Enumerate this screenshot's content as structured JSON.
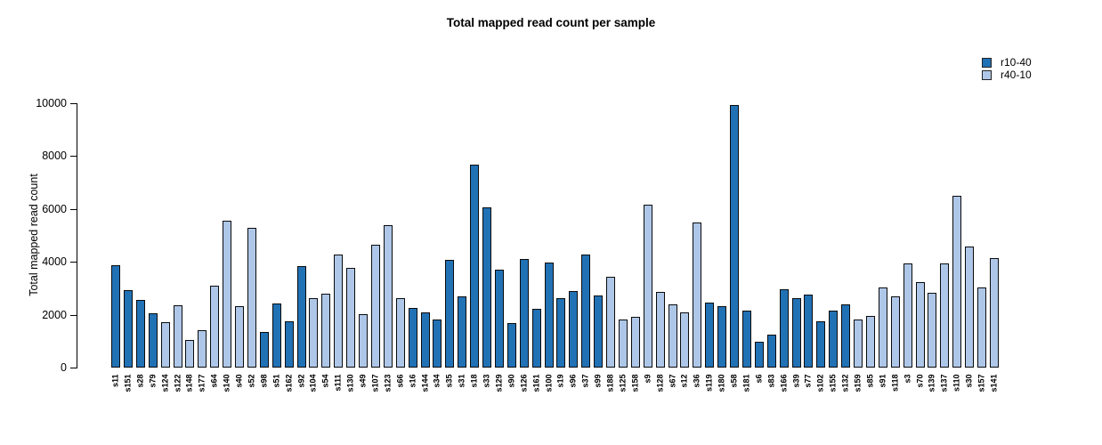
{
  "title": "Total mapped read count per sample",
  "legend": {
    "items": [
      {
        "label": "r10-40",
        "color": "#2171B5"
      },
      {
        "label": "r40-10",
        "color": "#AEC7E8"
      }
    ]
  },
  "chart_data": {
    "type": "bar",
    "title": "Total mapped read count per sample",
    "xlabel": "",
    "ylabel": "Total mapped read count",
    "ylim": [
      0,
      10000
    ],
    "yticks": [
      0,
      2000,
      4000,
      6000,
      8000,
      10000
    ],
    "grid": false,
    "legend_position": "top-right",
    "series_colors": {
      "r10-40": "#2171B5",
      "r40-10": "#AEC7E8"
    },
    "bars": {
      "columns": [
        "sample",
        "series",
        "value"
      ],
      "rows": [
        [
          "s11",
          "r10-40",
          3860
        ],
        [
          "s151",
          "r10-40",
          2940
        ],
        [
          "s28",
          "r10-40",
          2560
        ],
        [
          "s79",
          "r10-40",
          2060
        ],
        [
          "s124",
          "r40-10",
          1710
        ],
        [
          "s122",
          "r40-10",
          2360
        ],
        [
          "s148",
          "r40-10",
          1060
        ],
        [
          "s177",
          "r40-10",
          1410
        ],
        [
          "s64",
          "r40-10",
          3090
        ],
        [
          "s140",
          "r40-10",
          5540
        ],
        [
          "s40",
          "r40-10",
          2320
        ],
        [
          "s52",
          "r40-10",
          5290
        ],
        [
          "s98",
          "r10-40",
          1350
        ],
        [
          "s51",
          "r10-40",
          2420
        ],
        [
          "s162",
          "r10-40",
          1740
        ],
        [
          "s92",
          "r10-40",
          3840
        ],
        [
          "s104",
          "r40-10",
          2610
        ],
        [
          "s54",
          "r40-10",
          2780
        ],
        [
          "s111",
          "r40-10",
          4260
        ],
        [
          "s130",
          "r40-10",
          3780
        ],
        [
          "s49",
          "r40-10",
          2010
        ],
        [
          "s107",
          "r40-10",
          4640
        ],
        [
          "s123",
          "r40-10",
          5390
        ],
        [
          "s66",
          "r40-10",
          2640
        ],
        [
          "s16",
          "r10-40",
          2260
        ],
        [
          "s144",
          "r10-40",
          2090
        ],
        [
          "s34",
          "r10-40",
          1820
        ],
        [
          "s35",
          "r10-40",
          4080
        ],
        [
          "s31",
          "r10-40",
          2690
        ],
        [
          "s18",
          "r10-40",
          7680
        ],
        [
          "s33",
          "r10-40",
          6050
        ],
        [
          "s129",
          "r10-40",
          3710
        ],
        [
          "s90",
          "r10-40",
          1700
        ],
        [
          "s126",
          "r10-40",
          4120
        ],
        [
          "s161",
          "r10-40",
          2220
        ],
        [
          "s100",
          "r10-40",
          3980
        ],
        [
          "s19",
          "r10-40",
          2630
        ],
        [
          "s96",
          "r10-40",
          2890
        ],
        [
          "s37",
          "r10-40",
          4270
        ],
        [
          "s99",
          "r10-40",
          2740
        ],
        [
          "s188",
          "r40-10",
          3450
        ],
        [
          "s125",
          "r40-10",
          1830
        ],
        [
          "s158",
          "r40-10",
          1910
        ],
        [
          "s9",
          "r40-10",
          6150
        ],
        [
          "s128",
          "r40-10",
          2850
        ],
        [
          "s67",
          "r40-10",
          2380
        ],
        [
          "s12",
          "r40-10",
          2100
        ],
        [
          "s36",
          "r40-10",
          5480
        ],
        [
          "s119",
          "r10-40",
          2470
        ],
        [
          "s180",
          "r10-40",
          2330
        ],
        [
          "s58",
          "r10-40",
          9940
        ],
        [
          "s181",
          "r10-40",
          2140
        ],
        [
          "s6",
          "r10-40",
          980
        ],
        [
          "s83",
          "r10-40",
          1250
        ],
        [
          "s166",
          "r10-40",
          2960
        ],
        [
          "s39",
          "r10-40",
          2610
        ],
        [
          "s77",
          "r10-40",
          2750
        ],
        [
          "s102",
          "r10-40",
          1760
        ],
        [
          "s155",
          "r10-40",
          2160
        ],
        [
          "s132",
          "r10-40",
          2380
        ],
        [
          "s159",
          "r40-10",
          1820
        ],
        [
          "s85",
          "r40-10",
          1940
        ],
        [
          "s91",
          "r40-10",
          3040
        ],
        [
          "s118",
          "r40-10",
          2710
        ],
        [
          "s3",
          "r40-10",
          3950
        ],
        [
          "s70",
          "r40-10",
          3240
        ],
        [
          "s139",
          "r40-10",
          2820
        ],
        [
          "s137",
          "r40-10",
          3930
        ],
        [
          "s110",
          "r40-10",
          6500
        ],
        [
          "s30",
          "r40-10",
          4590
        ],
        [
          "s157",
          "r40-10",
          3040
        ],
        [
          "s141",
          "r40-10",
          4150
        ]
      ]
    }
  }
}
